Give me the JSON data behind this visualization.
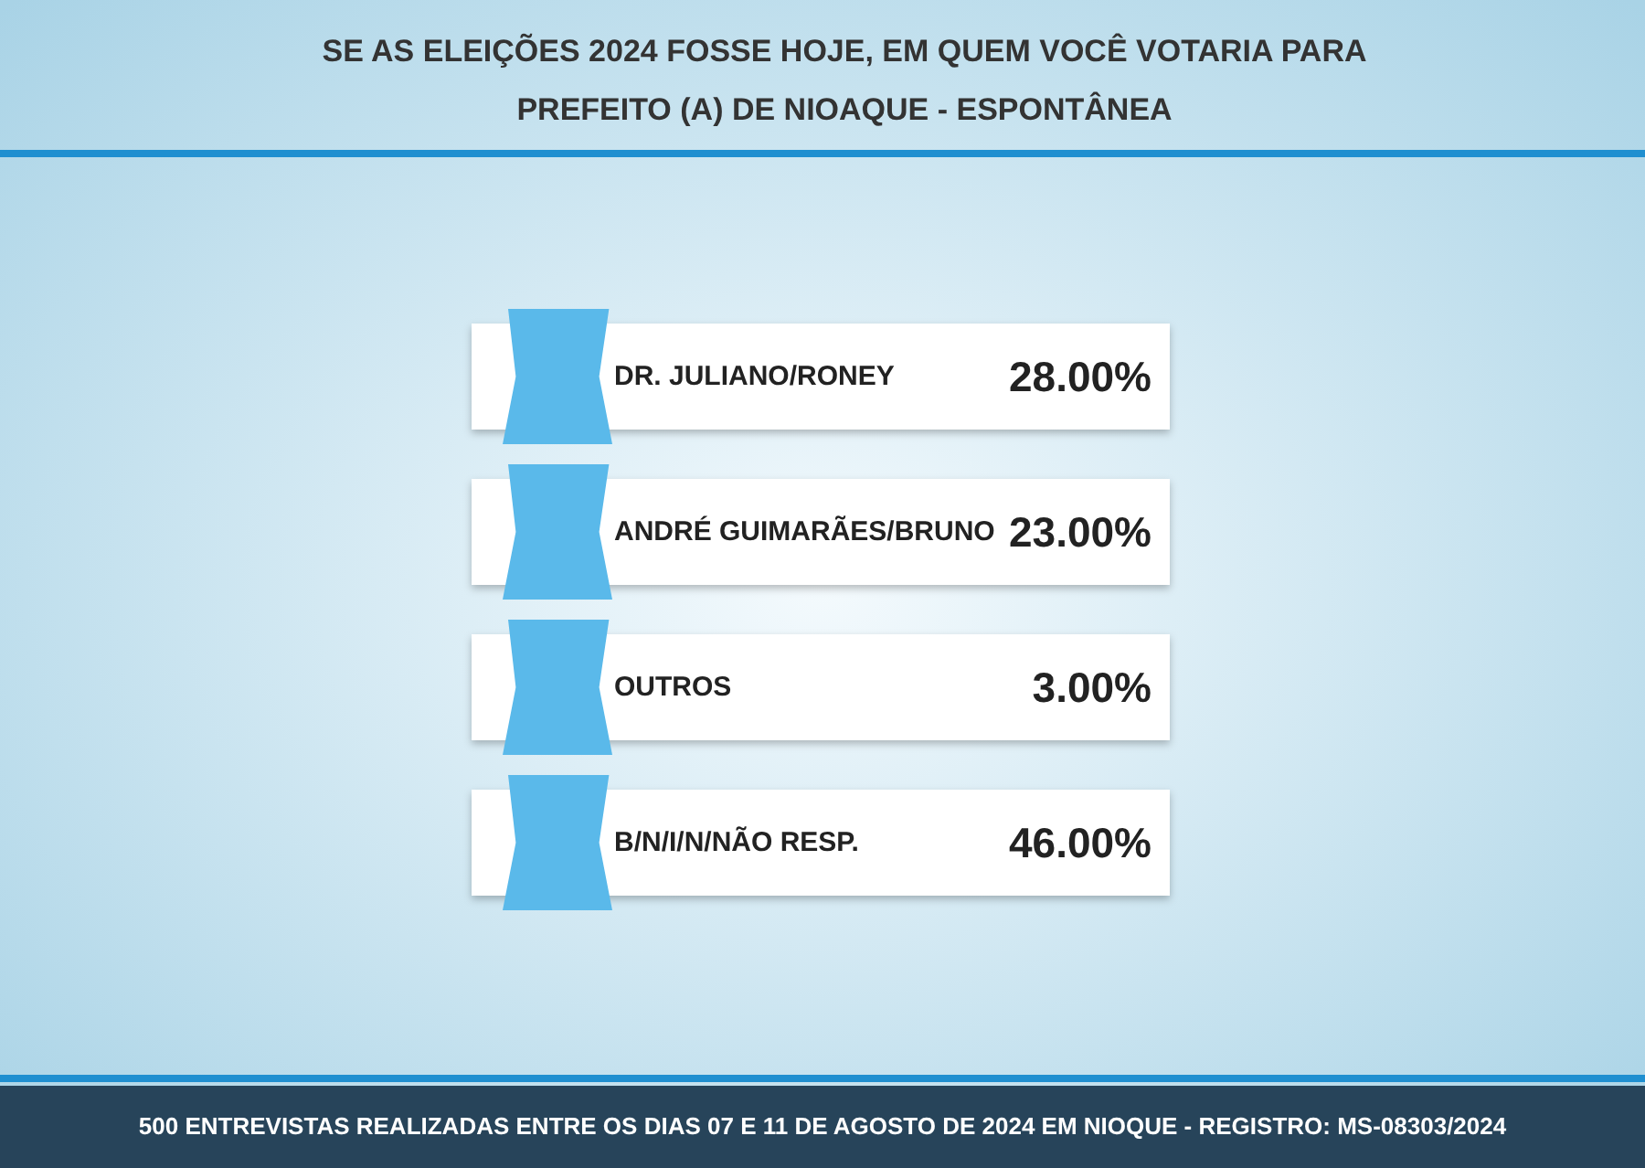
{
  "chart_data": {
    "type": "other",
    "title": "SE AS ELEIÇÕES 2024 FOSSE HOJE, EM QUEM VOCÊ VOTARIA PARA\nPREFEITO (A) DE NIOAQUE - ESPONTÂNEA",
    "categories": [
      "DR. JULIANO/RONEY",
      "ANDRÉ GUIMARÃES/BRUNO",
      "OUTROS",
      "B/N/I/N/NÃO RESP."
    ],
    "values": [
      28,
      23,
      3,
      46
    ],
    "value_labels": [
      "28.00%",
      "23.00%",
      "3.00%",
      "46.00%"
    ],
    "colors": [
      "#ffffff",
      "#ffffff",
      "#ffffff",
      "#ffffff"
    ],
    "annotations": [
      "500 ENTREVISTAS REALIZADAS ENTRE OS DIAS 07 E 11 DE AGOSTO DE 2024 EM NIOQUE - REGISTRO: MS-08303/2024"
    ]
  }
}
